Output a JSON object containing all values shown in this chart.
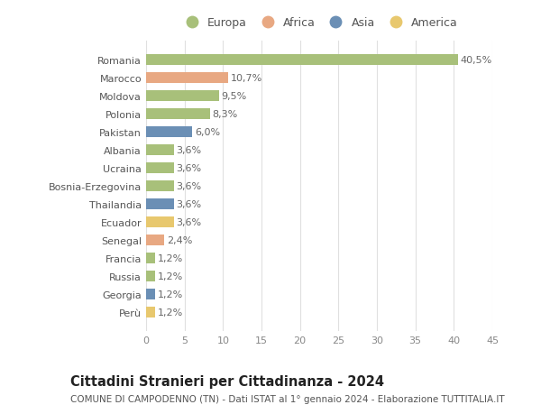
{
  "countries": [
    "Romania",
    "Marocco",
    "Moldova",
    "Polonia",
    "Pakistan",
    "Albania",
    "Ucraina",
    "Bosnia-Erzegovina",
    "Thailandia",
    "Ecuador",
    "Senegal",
    "Francia",
    "Russia",
    "Georgia",
    "Perù"
  ],
  "values": [
    40.5,
    10.7,
    9.5,
    8.3,
    6.0,
    3.6,
    3.6,
    3.6,
    3.6,
    3.6,
    2.4,
    1.2,
    1.2,
    1.2,
    1.2
  ],
  "labels": [
    "40,5%",
    "10,7%",
    "9,5%",
    "8,3%",
    "6,0%",
    "3,6%",
    "3,6%",
    "3,6%",
    "3,6%",
    "3,6%",
    "2,4%",
    "1,2%",
    "1,2%",
    "1,2%",
    "1,2%"
  ],
  "continents": [
    "Europa",
    "Africa",
    "Europa",
    "Europa",
    "Asia",
    "Europa",
    "Europa",
    "Europa",
    "Asia",
    "America",
    "Africa",
    "Europa",
    "Europa",
    "Asia",
    "America"
  ],
  "continent_colors": {
    "Europa": "#a8c07a",
    "Africa": "#e8a882",
    "Asia": "#6b8fb5",
    "America": "#e8c86e"
  },
  "legend_order": [
    "Europa",
    "Africa",
    "Asia",
    "America"
  ],
  "title": "Cittadini Stranieri per Cittadinanza - 2024",
  "subtitle": "COMUNE DI CAMPODENNO (TN) - Dati ISTAT al 1° gennaio 2024 - Elaborazione TUTTITALIA.IT",
  "xlim": [
    0,
    45
  ],
  "xticks": [
    0,
    5,
    10,
    15,
    20,
    25,
    30,
    35,
    40,
    45
  ],
  "bg_color": "#ffffff",
  "grid_color": "#e0e0e0",
  "bar_height": 0.6,
  "label_fontsize": 8.0,
  "tick_label_fontsize": 8.0,
  "title_fontsize": 10.5,
  "subtitle_fontsize": 7.5
}
